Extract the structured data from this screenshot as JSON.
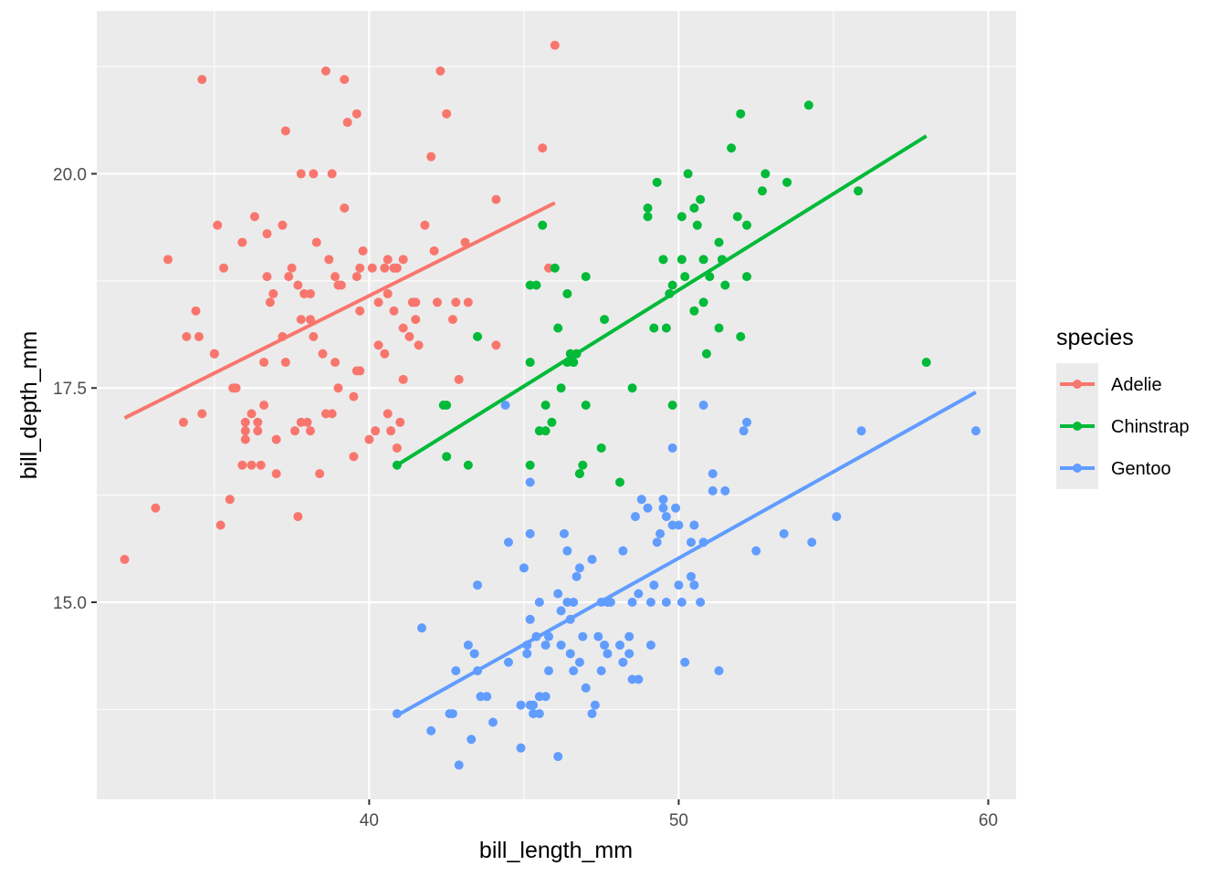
{
  "chart_data": {
    "type": "scatter",
    "title": "",
    "xlabel": "bill_length_mm",
    "ylabel": "bill_depth_mm",
    "xlim": [
      31.2,
      60.9
    ],
    "ylim": [
      12.7,
      21.9
    ],
    "x_major_ticks": [
      40,
      50,
      60
    ],
    "x_minor_ticks": [
      35,
      45,
      55
    ],
    "y_major_ticks": [
      15.0,
      17.5,
      20.0
    ],
    "y_minor_ticks": [
      13.75,
      16.25,
      18.75,
      21.25
    ],
    "x_tick_labels": [
      "40",
      "50",
      "60"
    ],
    "y_tick_labels": [
      "15.0",
      "17.5",
      "20.0"
    ],
    "grid": true,
    "panel_background": "#ebebeb",
    "legend": {
      "title": "species",
      "position": "right"
    },
    "series": [
      {
        "name": "Adelie",
        "color": "#f8766d",
        "fit_line": [
          [
            32.1,
            17.15
          ],
          [
            46.0,
            19.66
          ]
        ],
        "points": [
          [
            32.1,
            15.5
          ],
          [
            33.1,
            16.1
          ],
          [
            33.5,
            19.0
          ],
          [
            34.0,
            17.1
          ],
          [
            34.1,
            18.1
          ],
          [
            34.4,
            18.4
          ],
          [
            34.5,
            18.1
          ],
          [
            34.6,
            21.1
          ],
          [
            34.6,
            17.2
          ],
          [
            35.0,
            17.9
          ],
          [
            35.1,
            19.4
          ],
          [
            35.2,
            15.9
          ],
          [
            35.3,
            18.9
          ],
          [
            35.5,
            16.2
          ],
          [
            35.6,
            17.5
          ],
          [
            35.7,
            17.5
          ],
          [
            35.9,
            16.6
          ],
          [
            35.9,
            19.2
          ],
          [
            36.0,
            17.0
          ],
          [
            36.0,
            16.9
          ],
          [
            36.0,
            17.1
          ],
          [
            36.2,
            16.6
          ],
          [
            36.2,
            17.2
          ],
          [
            36.3,
            19.5
          ],
          [
            36.4,
            17.0
          ],
          [
            36.4,
            17.1
          ],
          [
            36.5,
            16.6
          ],
          [
            36.6,
            17.8
          ],
          [
            36.7,
            18.8
          ],
          [
            36.7,
            19.3
          ],
          [
            36.8,
            18.5
          ],
          [
            36.9,
            18.6
          ],
          [
            37.0,
            16.9
          ],
          [
            37.2,
            18.1
          ],
          [
            37.2,
            19.4
          ],
          [
            37.3,
            17.8
          ],
          [
            37.3,
            20.5
          ],
          [
            37.5,
            18.9
          ],
          [
            37.6,
            17.0
          ],
          [
            37.7,
            18.7
          ],
          [
            37.8,
            17.1
          ],
          [
            37.8,
            18.3
          ],
          [
            37.8,
            20.0
          ],
          [
            37.9,
            18.6
          ],
          [
            38.1,
            18.6
          ],
          [
            38.1,
            17.0
          ],
          [
            38.2,
            18.1
          ],
          [
            38.2,
            20.0
          ],
          [
            38.3,
            19.2
          ],
          [
            38.5,
            17.9
          ],
          [
            38.6,
            17.2
          ],
          [
            38.6,
            21.2
          ],
          [
            38.7,
            19.0
          ],
          [
            38.8,
            17.2
          ],
          [
            38.8,
            20.0
          ],
          [
            38.9,
            17.8
          ],
          [
            38.9,
            18.8
          ],
          [
            39.0,
            18.7
          ],
          [
            39.1,
            18.7
          ],
          [
            39.2,
            19.6
          ],
          [
            39.2,
            21.1
          ],
          [
            39.3,
            20.6
          ],
          [
            39.5,
            17.4
          ],
          [
            39.5,
            16.7
          ],
          [
            39.6,
            17.7
          ],
          [
            39.6,
            18.8
          ],
          [
            39.6,
            20.7
          ],
          [
            39.7,
            17.7
          ],
          [
            39.7,
            18.9
          ],
          [
            39.8,
            19.1
          ],
          [
            40.1,
            18.9
          ],
          [
            40.2,
            17.0
          ],
          [
            40.3,
            18.0
          ],
          [
            40.5,
            17.9
          ],
          [
            40.5,
            18.9
          ],
          [
            40.6,
            18.6
          ],
          [
            40.6,
            17.2
          ],
          [
            40.6,
            19.0
          ],
          [
            40.7,
            17.0
          ],
          [
            40.8,
            18.4
          ],
          [
            40.9,
            18.9
          ],
          [
            40.9,
            16.8
          ],
          [
            41.0,
            17.1
          ],
          [
            41.1,
            17.6
          ],
          [
            41.1,
            19.0
          ],
          [
            41.1,
            18.2
          ],
          [
            41.3,
            18.1
          ],
          [
            41.4,
            18.5
          ],
          [
            41.5,
            18.3
          ],
          [
            41.6,
            18.0
          ],
          [
            41.8,
            19.4
          ],
          [
            42.0,
            20.2
          ],
          [
            42.1,
            19.1
          ],
          [
            42.2,
            18.5
          ],
          [
            42.3,
            21.2
          ],
          [
            42.5,
            20.7
          ],
          [
            42.7,
            18.3
          ],
          [
            42.8,
            18.5
          ],
          [
            42.9,
            17.6
          ],
          [
            43.1,
            19.2
          ],
          [
            43.2,
            18.5
          ],
          [
            44.1,
            18.0
          ],
          [
            44.1,
            19.7
          ],
          [
            45.6,
            20.3
          ],
          [
            45.8,
            18.9
          ],
          [
            46.0,
            21.5
          ],
          [
            38.0,
            17.1
          ],
          [
            39.0,
            17.5
          ],
          [
            40.0,
            16.9
          ],
          [
            41.5,
            18.5
          ],
          [
            37.0,
            16.5
          ],
          [
            38.4,
            16.5
          ],
          [
            36.6,
            17.3
          ],
          [
            35.0,
            17.9
          ],
          [
            40.8,
            18.9
          ],
          [
            37.7,
            16.0
          ],
          [
            37.4,
            18.8
          ],
          [
            39.7,
            18.4
          ],
          [
            38.1,
            18.3
          ],
          [
            40.3,
            18.5
          ]
        ]
      },
      {
        "name": "Chinstrap",
        "color": "#00ba38",
        "fit_line": [
          [
            40.9,
            16.6
          ],
          [
            58.0,
            20.44
          ]
        ],
        "points": [
          [
            40.9,
            16.6
          ],
          [
            42.4,
            17.3
          ],
          [
            42.5,
            17.3
          ],
          [
            42.5,
            16.7
          ],
          [
            43.2,
            16.6
          ],
          [
            43.5,
            18.1
          ],
          [
            45.2,
            17.8
          ],
          [
            45.2,
            16.6
          ],
          [
            45.4,
            18.7
          ],
          [
            45.5,
            17.0
          ],
          [
            45.6,
            19.4
          ],
          [
            45.7,
            17.3
          ],
          [
            45.7,
            17.0
          ],
          [
            45.9,
            17.1
          ],
          [
            46.0,
            18.9
          ],
          [
            46.1,
            18.2
          ],
          [
            46.2,
            17.5
          ],
          [
            46.4,
            18.6
          ],
          [
            46.4,
            17.8
          ],
          [
            46.5,
            17.9
          ],
          [
            46.6,
            17.8
          ],
          [
            46.7,
            17.9
          ],
          [
            46.8,
            16.5
          ],
          [
            46.9,
            16.6
          ],
          [
            47.0,
            17.3
          ],
          [
            47.5,
            16.8
          ],
          [
            47.6,
            18.3
          ],
          [
            48.1,
            16.4
          ],
          [
            48.5,
            17.5
          ],
          [
            49.0,
            19.5
          ],
          [
            49.0,
            19.6
          ],
          [
            49.2,
            18.2
          ],
          [
            49.3,
            19.9
          ],
          [
            49.5,
            19.0
          ],
          [
            49.6,
            18.2
          ],
          [
            49.7,
            18.6
          ],
          [
            49.8,
            17.3
          ],
          [
            50.1,
            19.5
          ],
          [
            50.2,
            18.8
          ],
          [
            50.3,
            20.0
          ],
          [
            50.5,
            19.6
          ],
          [
            50.6,
            19.4
          ],
          [
            50.7,
            19.7
          ],
          [
            50.8,
            18.5
          ],
          [
            50.9,
            17.9
          ],
          [
            51.0,
            18.8
          ],
          [
            51.3,
            18.2
          ],
          [
            51.3,
            19.2
          ],
          [
            51.4,
            19.0
          ],
          [
            51.5,
            18.7
          ],
          [
            51.7,
            20.3
          ],
          [
            52.0,
            18.1
          ],
          [
            52.0,
            20.7
          ],
          [
            52.2,
            18.8
          ],
          [
            52.7,
            19.8
          ],
          [
            52.8,
            20.0
          ],
          [
            53.5,
            19.9
          ],
          [
            54.2,
            20.8
          ],
          [
            55.8,
            19.8
          ],
          [
            58.0,
            17.8
          ],
          [
            46.8,
            16.5
          ],
          [
            45.2,
            18.7
          ],
          [
            50.5,
            18.4
          ],
          [
            49.8,
            18.7
          ],
          [
            51.9,
            19.5
          ],
          [
            50.8,
            19.0
          ],
          [
            46.6,
            17.8
          ],
          [
            47.0,
            18.8
          ],
          [
            50.1,
            19.0
          ],
          [
            52.2,
            19.4
          ]
        ]
      },
      {
        "name": "Gentoo",
        "color": "#619cff",
        "fit_line": [
          [
            40.9,
            13.68
          ],
          [
            59.6,
            17.45
          ]
        ],
        "points": [
          [
            40.9,
            13.7
          ],
          [
            41.7,
            14.7
          ],
          [
            42.0,
            13.5
          ],
          [
            42.6,
            13.7
          ],
          [
            42.7,
            13.7
          ],
          [
            42.8,
            14.2
          ],
          [
            42.9,
            13.1
          ],
          [
            43.2,
            14.5
          ],
          [
            43.3,
            13.4
          ],
          [
            43.4,
            14.4
          ],
          [
            43.5,
            14.2
          ],
          [
            43.5,
            15.2
          ],
          [
            43.6,
            13.9
          ],
          [
            43.8,
            13.9
          ],
          [
            44.0,
            13.6
          ],
          [
            44.4,
            17.3
          ],
          [
            44.5,
            14.3
          ],
          [
            44.5,
            15.7
          ],
          [
            44.9,
            13.8
          ],
          [
            44.9,
            13.3
          ],
          [
            45.0,
            15.4
          ],
          [
            45.1,
            14.5
          ],
          [
            45.1,
            14.4
          ],
          [
            45.2,
            14.8
          ],
          [
            45.2,
            13.8
          ],
          [
            45.2,
            16.4
          ],
          [
            45.2,
            15.8
          ],
          [
            45.3,
            13.7
          ],
          [
            45.3,
            13.8
          ],
          [
            45.4,
            14.6
          ],
          [
            45.5,
            13.7
          ],
          [
            45.5,
            13.9
          ],
          [
            45.5,
            15.0
          ],
          [
            45.7,
            13.9
          ],
          [
            45.8,
            14.2
          ],
          [
            45.8,
            14.6
          ],
          [
            46.1,
            15.1
          ],
          [
            46.1,
            13.2
          ],
          [
            46.2,
            14.5
          ],
          [
            46.2,
            14.9
          ],
          [
            46.3,
            15.8
          ],
          [
            46.4,
            15.6
          ],
          [
            46.4,
            15.0
          ],
          [
            46.5,
            14.4
          ],
          [
            46.5,
            14.8
          ],
          [
            46.6,
            14.2
          ],
          [
            46.7,
            15.3
          ],
          [
            46.8,
            14.3
          ],
          [
            46.8,
            15.4
          ],
          [
            46.9,
            14.6
          ],
          [
            47.2,
            13.7
          ],
          [
            47.2,
            15.5
          ],
          [
            47.3,
            13.8
          ],
          [
            47.4,
            14.6
          ],
          [
            47.5,
            14.2
          ],
          [
            47.5,
            15.0
          ],
          [
            47.6,
            14.5
          ],
          [
            47.7,
            15.0
          ],
          [
            47.8,
            15.0
          ],
          [
            48.1,
            14.5
          ],
          [
            48.2,
            14.3
          ],
          [
            48.2,
            15.6
          ],
          [
            48.4,
            14.6
          ],
          [
            48.4,
            14.4
          ],
          [
            48.5,
            14.1
          ],
          [
            48.5,
            15.0
          ],
          [
            48.6,
            16.0
          ],
          [
            48.7,
            14.1
          ],
          [
            48.7,
            15.1
          ],
          [
            48.8,
            16.2
          ],
          [
            49.0,
            16.1
          ],
          [
            49.1,
            14.5
          ],
          [
            49.1,
            15.0
          ],
          [
            49.2,
            15.2
          ],
          [
            49.3,
            15.7
          ],
          [
            49.4,
            15.8
          ],
          [
            49.5,
            16.2
          ],
          [
            49.5,
            16.1
          ],
          [
            49.6,
            15.0
          ],
          [
            49.6,
            16.0
          ],
          [
            49.8,
            15.9
          ],
          [
            49.8,
            16.8
          ],
          [
            49.9,
            16.1
          ],
          [
            50.0,
            15.2
          ],
          [
            50.0,
            15.9
          ],
          [
            50.1,
            15.0
          ],
          [
            50.2,
            14.3
          ],
          [
            50.4,
            15.3
          ],
          [
            50.4,
            15.7
          ],
          [
            50.5,
            15.9
          ],
          [
            50.5,
            15.2
          ],
          [
            50.7,
            15.0
          ],
          [
            50.8,
            15.7
          ],
          [
            50.8,
            17.3
          ],
          [
            51.1,
            16.3
          ],
          [
            51.1,
            16.5
          ],
          [
            51.3,
            14.2
          ],
          [
            51.5,
            16.3
          ],
          [
            52.1,
            17.0
          ],
          [
            52.2,
            17.1
          ],
          [
            52.5,
            15.6
          ],
          [
            53.4,
            15.8
          ],
          [
            54.3,
            15.7
          ],
          [
            55.1,
            16.0
          ],
          [
            55.9,
            17.0
          ],
          [
            59.6,
            17.0
          ],
          [
            47.0,
            14.0
          ],
          [
            47.7,
            14.4
          ],
          [
            46.6,
            15.0
          ],
          [
            45.7,
            14.5
          ]
        ]
      }
    ]
  }
}
